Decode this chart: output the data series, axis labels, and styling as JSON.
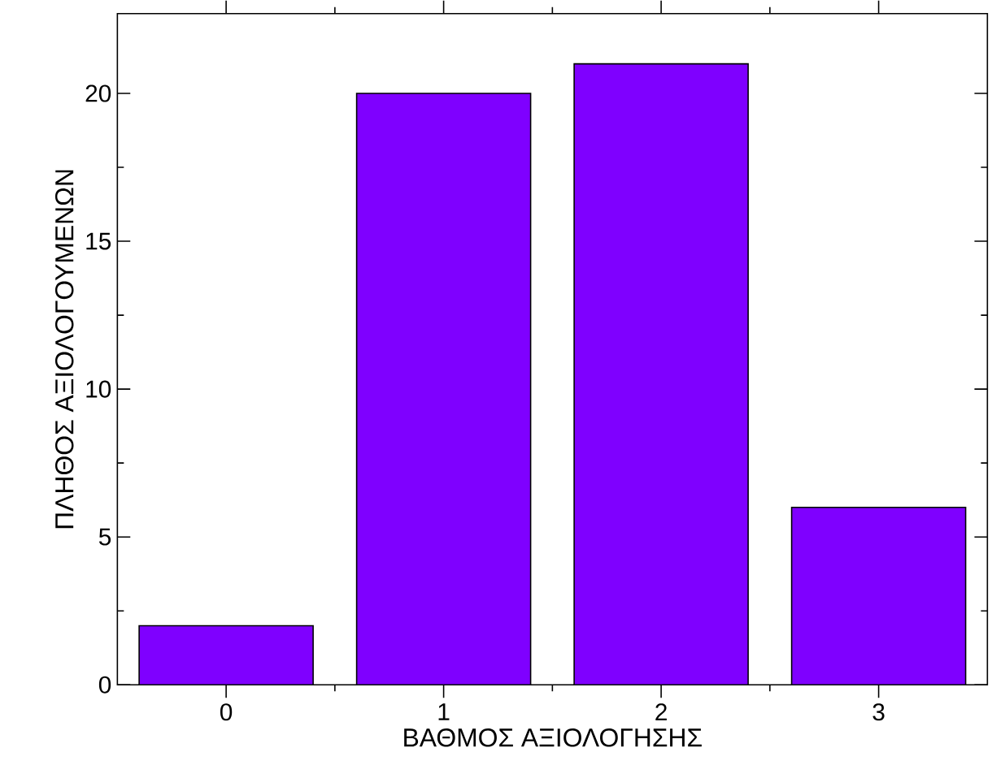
{
  "chart_data": {
    "type": "bar",
    "xlabel": "ΒΑΘΜΟΣ ΑΞΙΟΛΟΓΗΣΗΣ",
    "ylabel": "ΠΛΗΘΟΣ ΑΞΙΟΛΟΓΟΥΜΕΝΩΝ",
    "categories": [
      "0",
      "1",
      "2",
      "3"
    ],
    "values": [
      2,
      20,
      21,
      6
    ],
    "color": "#7f00ff",
    "ylim": [
      0,
      22.7
    ],
    "yticks": [
      0,
      5,
      10,
      15,
      20
    ],
    "grid": false
  }
}
